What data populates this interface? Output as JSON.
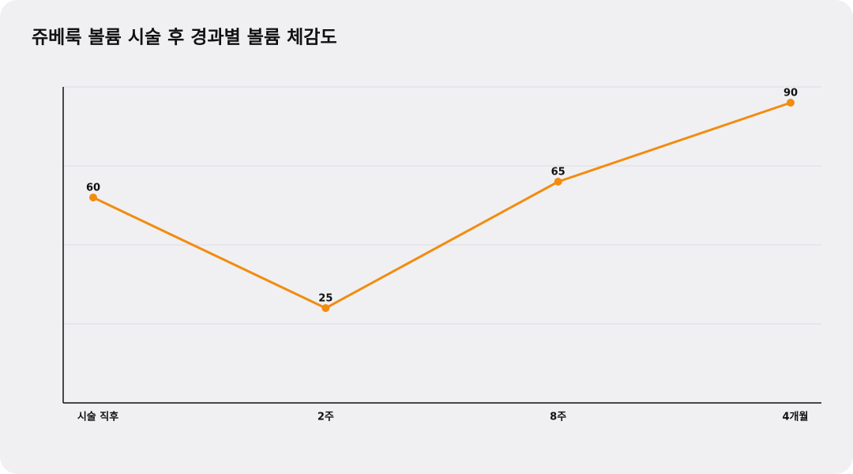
{
  "chart_data": {
    "type": "line",
    "title": "쥬베룩 볼륨 시술 후 경과별 볼륨 체감도",
    "categories": [
      "시술 직후",
      "2주",
      "8주",
      "4개월"
    ],
    "series": [
      {
        "name": "볼륨 체감도",
        "color": "#f28c0f",
        "values": [
          60,
          25,
          65,
          90
        ]
      }
    ],
    "ylim": [
      -5,
      95
    ],
    "yticks": [
      20,
      45,
      70,
      95
    ],
    "grid": true
  }
}
